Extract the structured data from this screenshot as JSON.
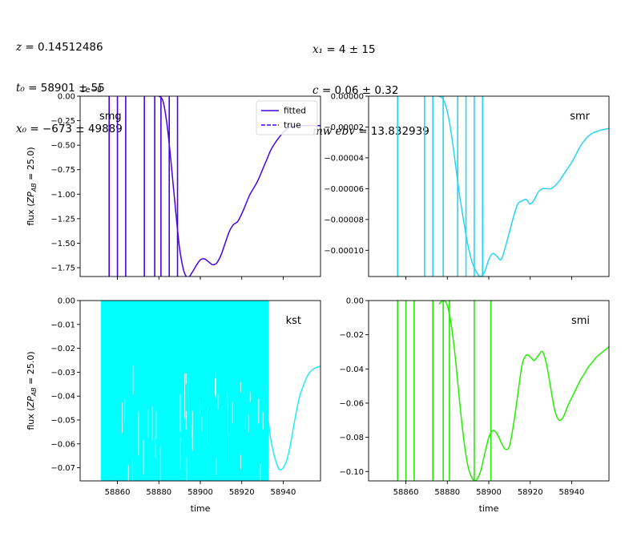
{
  "header": {
    "left": [
      {
        "sym": "z",
        "rest": " = 0.14512486"
      },
      {
        "sym": "t₀",
        "rest": " = 58901 ± 55"
      },
      {
        "sym": "x₀",
        "rest": " = −673 ± 49889"
      }
    ],
    "right": [
      {
        "sym": "x₁",
        "rest": " = 4 ± 15"
      },
      {
        "sym": "c",
        "rest": " = 0.06 ± 0.32"
      },
      {
        "sym": "mw ebv",
        "rest": " = 13.832939"
      }
    ]
  },
  "colors": {
    "smg": "#4a00e8",
    "smr": "#22d6f4",
    "kst": "#22ecf6",
    "smi": "#22ee00",
    "kst_fill": "#00ffff"
  },
  "chart_data": [
    {
      "type": "line",
      "panel": "smg",
      "ylabel": "flux (ZP_AB = 25.0)",
      "offset_text": "1e−8",
      "xlim": [
        58842,
        58958
      ],
      "ylim": [
        -1.84,
        0.0
      ],
      "yticks": [
        "0.00",
        "−0.25",
        "−0.50",
        "−0.75",
        "−1.00",
        "−1.25",
        "−1.50",
        "−1.75"
      ],
      "ytick_values": [
        0,
        -0.25,
        -0.5,
        -0.75,
        -1.0,
        -1.25,
        -1.5,
        -1.75
      ],
      "xticks": [
        58860,
        58880,
        58900,
        58920,
        58940
      ],
      "show_xticklabels": false,
      "legend": {
        "position": "upper right",
        "entries": [
          "fitted",
          "true"
        ]
      },
      "obs_lines": [
        58856,
        58860,
        58864,
        58873,
        58878,
        58881,
        58885,
        58889
      ],
      "curve_x": [
        58880,
        58882,
        58884,
        58886,
        58888,
        58890,
        58892,
        58894,
        58896,
        58898,
        58900,
        58902,
        58904,
        58906,
        58908,
        58910,
        58912,
        58914,
        58916,
        58918,
        58920,
        58922,
        58924,
        58926,
        58928,
        58930,
        58932,
        58934,
        58936,
        58938,
        58940,
        58942,
        58944,
        58946,
        58948,
        58950,
        58952,
        58954,
        58956,
        58958
      ],
      "curve_y": [
        0.0,
        -0.05,
        -0.3,
        -0.7,
        -1.15,
        -1.55,
        -1.78,
        -1.85,
        -1.8,
        -1.73,
        -1.67,
        -1.66,
        -1.69,
        -1.72,
        -1.7,
        -1.62,
        -1.5,
        -1.38,
        -1.31,
        -1.28,
        -1.2,
        -1.1,
        -1.0,
        -0.93,
        -0.85,
        -0.75,
        -0.65,
        -0.55,
        -0.48,
        -0.42,
        -0.37,
        -0.33,
        -0.31,
        -0.3,
        -0.3,
        -0.3,
        -0.3,
        -0.3,
        -0.3,
        -0.3
      ]
    },
    {
      "type": "line",
      "panel": "smr",
      "ylabel": "",
      "offset_text": "",
      "xlim": [
        58842,
        58958
      ],
      "ylim": [
        -0.000117,
        0.0
      ],
      "yticks": [
        "0.00000",
        "−0.00002",
        "−0.00004",
        "−0.00006",
        "−0.00008",
        "−0.00010"
      ],
      "ytick_values": [
        0,
        -2e-05,
        -4e-05,
        -6e-05,
        -8e-05,
        -0.0001
      ],
      "xticks": [
        58860,
        58880,
        58900,
        58920,
        58940
      ],
      "show_xticklabels": false,
      "obs_lines": [
        58856,
        58869,
        58873,
        58878,
        58885,
        58889,
        58893,
        58897
      ],
      "curve_x": [
        58876,
        58878,
        58880,
        58882,
        58884,
        58886,
        58888,
        58890,
        58892,
        58894,
        58896,
        58898,
        58900,
        58902,
        58904,
        58906,
        58908,
        58910,
        58912,
        58914,
        58916,
        58918,
        58920,
        58922,
        58924,
        58926,
        58928,
        58930,
        58932,
        58934,
        58936,
        58938,
        58940,
        58942,
        58944,
        58946,
        58948,
        58950,
        58952,
        58954,
        58956,
        58958
      ],
      "curve_y": [
        0.0,
        -2e-06,
        -1e-05,
        -2.5e-05,
        -4.5e-05,
        -6.5e-05,
        -8.2e-05,
        -9.7e-05,
        -0.000108,
        -0.000114,
        -0.000117,
        -0.000114,
        -0.000106,
        -0.000102,
        -0.000104,
        -0.000106,
        -9.8e-05,
        -8.8e-05,
        -7.8e-05,
        -7e-05,
        -6.8e-05,
        -6.7e-05,
        -7e-05,
        -6.7e-05,
        -6.2e-05,
        -6e-05,
        -6e-05,
        -6e-05,
        -5.8e-05,
        -5.5e-05,
        -5.1e-05,
        -4.7e-05,
        -4.3e-05,
        -3.8e-05,
        -3.3e-05,
        -2.9e-05,
        -2.6e-05,
        -2.4e-05,
        -2.3e-05,
        -2.2e-05,
        -2.15e-05,
        -2.1e-05
      ],
      "tag_pos": "right"
    },
    {
      "type": "line",
      "panel": "kst",
      "ylabel": "flux (ZP_AB = 25.0)",
      "offset_text": "",
      "xlabel": "time",
      "xlim": [
        58842,
        58958
      ],
      "ylim": [
        -0.0755,
        0.0
      ],
      "yticks": [
        "0.00",
        "−0.01",
        "−0.02",
        "−0.03",
        "−0.04",
        "−0.05",
        "−0.06",
        "−0.07"
      ],
      "ytick_values": [
        0,
        -0.01,
        -0.02,
        -0.03,
        -0.04,
        -0.05,
        -0.06,
        -0.07
      ],
      "xticks": [
        58860,
        58880,
        58900,
        58920,
        58940
      ],
      "xticklabels": [
        "58860",
        "58880",
        "58900",
        "58920",
        "58940"
      ],
      "show_xticklabels": true,
      "obs_band": [
        58852,
        58933
      ],
      "curve_x": [
        58930,
        58932,
        58934,
        58936,
        58938,
        58940,
        58942,
        58944,
        58946,
        58948,
        58950,
        58952,
        58954,
        58956,
        58958
      ],
      "curve_y": [
        -0.035,
        -0.045,
        -0.058,
        -0.066,
        -0.0705,
        -0.07,
        -0.066,
        -0.058,
        -0.048,
        -0.04,
        -0.035,
        -0.031,
        -0.029,
        -0.028,
        -0.0275
      ],
      "tag_pos": "right"
    },
    {
      "type": "line",
      "panel": "smi",
      "ylabel": "",
      "offset_text": "",
      "xlabel": "time",
      "xlim": [
        58842,
        58958
      ],
      "ylim": [
        -0.1055,
        0.0
      ],
      "yticks": [
        "0.00",
        "−0.02",
        "−0.04",
        "−0.06",
        "−0.08",
        "−0.10"
      ],
      "ytick_values": [
        0,
        -0.02,
        -0.04,
        -0.06,
        -0.08,
        -0.1
      ],
      "xticks": [
        58860,
        58880,
        58900,
        58920,
        58940
      ],
      "xticklabels": [
        "58860",
        "58880",
        "58900",
        "58920",
        "58940"
      ],
      "show_xticklabels": true,
      "obs_lines": [
        58856,
        58860,
        58864,
        58873,
        58878,
        58881,
        58893,
        58901
      ],
      "curve_x": [
        58876,
        58878,
        58880,
        58882,
        58884,
        58886,
        58888,
        58890,
        58892,
        58894,
        58896,
        58898,
        58900,
        58902,
        58904,
        58906,
        58908,
        58910,
        58912,
        58914,
        58916,
        58918,
        58920,
        58922,
        58924,
        58926,
        58928,
        58930,
        58932,
        58934,
        58936,
        58938,
        58940,
        58942,
        58944,
        58946,
        58948,
        58950,
        58952,
        58954,
        58956,
        58958
      ],
      "curve_y": [
        -0.002,
        0.0,
        -0.003,
        -0.015,
        -0.035,
        -0.06,
        -0.082,
        -0.097,
        -0.104,
        -0.105,
        -0.1,
        -0.09,
        -0.08,
        -0.076,
        -0.078,
        -0.083,
        -0.087,
        -0.085,
        -0.072,
        -0.055,
        -0.038,
        -0.032,
        -0.033,
        -0.035,
        -0.032,
        -0.03,
        -0.038,
        -0.052,
        -0.065,
        -0.07,
        -0.068,
        -0.062,
        -0.057,
        -0.052,
        -0.047,
        -0.043,
        -0.039,
        -0.036,
        -0.033,
        -0.031,
        -0.029,
        -0.027
      ],
      "tag_pos": "right"
    }
  ]
}
